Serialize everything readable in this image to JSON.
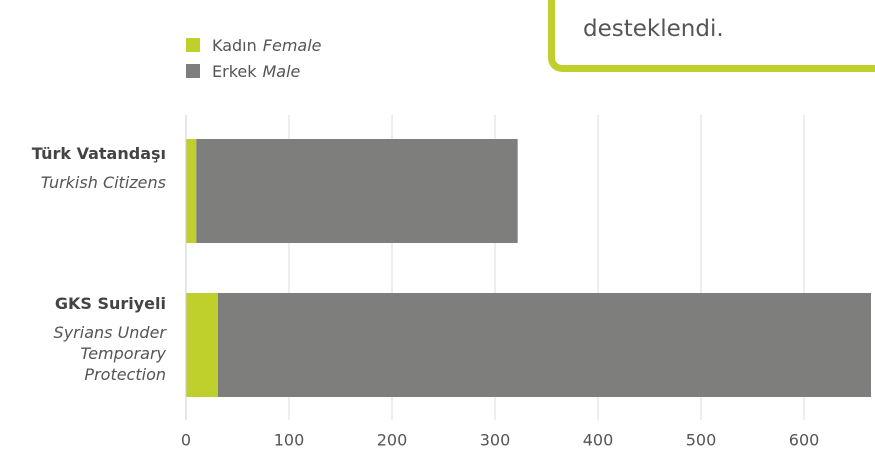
{
  "callout": {
    "text": "desteklendi."
  },
  "chart_data": {
    "type": "barh-stacked",
    "categories": [
      "Türk Vatandaşı",
      "GKS Suriyeli"
    ],
    "categories_en": [
      "Turkish Citizens",
      "Syrians Under Temporary Protection"
    ],
    "series": [
      {
        "name": "Kadın",
        "name_en": "Female",
        "color": "#bfcf2b",
        "values": [
          10,
          31
        ]
      },
      {
        "name": "Erkek",
        "name_en": "Male",
        "color": "#7e7f7d",
        "values": [
          312,
          634
        ]
      }
    ],
    "xlim": [
      0,
      665
    ],
    "xticks": [
      0,
      100,
      200,
      300,
      400,
      500,
      600
    ],
    "grid": true
  }
}
